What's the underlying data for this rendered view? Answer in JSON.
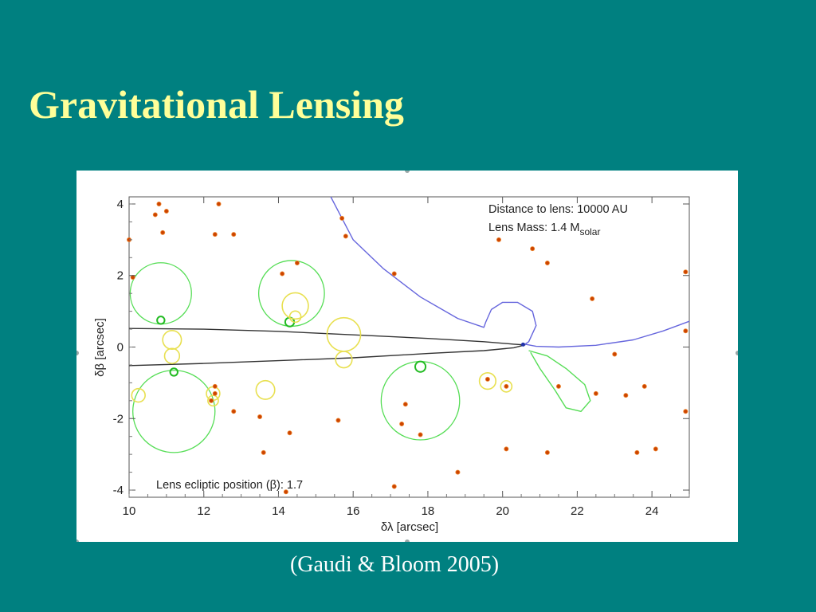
{
  "slide": {
    "title": "Gravitational Lensing",
    "caption": "(Gaudi & Bloom 2005)"
  },
  "colors": {
    "background": "#008080",
    "title": "#ffff99",
    "caption": "#ffffff",
    "star_point": "#cc4400",
    "green_image": "#55dd55",
    "yellow_image": "#e8e050",
    "blue_track": "#6666dd",
    "black_caustic": "#333333"
  },
  "chart_data": {
    "type": "scatter",
    "title": "",
    "xlabel": "δλ [arcsec]",
    "ylabel": "δβ [arcsec]",
    "xlim": [
      10,
      25
    ],
    "ylim": [
      -4.2,
      4.2
    ],
    "xticks": [
      "10",
      "12",
      "14",
      "16",
      "18",
      "20",
      "22",
      "24"
    ],
    "yticks": [
      "4",
      "2",
      "0",
      "-2",
      "-4"
    ],
    "xtick_values": [
      10,
      12,
      14,
      16,
      18,
      20,
      22,
      24
    ],
    "ytick_values": [
      4,
      2,
      0,
      -2,
      -4
    ],
    "annotations": {
      "distance": "Distance to lens: 10000 AU",
      "mass_main": "Lens Mass: 1.4 M",
      "mass_sub": "solar",
      "ecliptic": "Lens ecliptic position (β): 1.7"
    },
    "stars": [
      [
        10.8,
        4.0
      ],
      [
        10.7,
        3.7
      ],
      [
        11.0,
        3.8
      ],
      [
        10.9,
        3.2
      ],
      [
        12.3,
        3.15
      ],
      [
        12.4,
        4.0
      ],
      [
        12.8,
        3.15
      ],
      [
        10.0,
        3.0
      ],
      [
        10.1,
        1.95
      ],
      [
        14.1,
        2.05
      ],
      [
        14.5,
        2.35
      ],
      [
        15.7,
        3.6
      ],
      [
        15.8,
        3.1
      ],
      [
        17.1,
        2.05
      ],
      [
        19.9,
        3.0
      ],
      [
        20.8,
        2.75
      ],
      [
        21.2,
        2.35
      ],
      [
        22.4,
        1.35
      ],
      [
        24.9,
        2.1
      ],
      [
        24.9,
        0.45
      ],
      [
        23.0,
        -0.2
      ],
      [
        22.5,
        -1.3
      ],
      [
        23.3,
        -1.35
      ],
      [
        23.8,
        -1.1
      ],
      [
        24.9,
        -1.8
      ],
      [
        21.5,
        -1.1
      ],
      [
        20.1,
        -1.1
      ],
      [
        19.6,
        -0.9
      ],
      [
        18.8,
        -3.5
      ],
      [
        20.1,
        -2.85
      ],
      [
        21.2,
        -2.95
      ],
      [
        23.6,
        -2.95
      ],
      [
        24.1,
        -2.85
      ],
      [
        17.4,
        -1.6
      ],
      [
        17.3,
        -2.15
      ],
      [
        17.8,
        -2.45
      ],
      [
        15.6,
        -2.05
      ],
      [
        13.5,
        -1.95
      ],
      [
        12.8,
        -1.8
      ],
      [
        13.6,
        -2.95
      ],
      [
        14.3,
        -2.4
      ],
      [
        12.2,
        -1.5
      ],
      [
        12.3,
        -1.3
      ],
      [
        12.3,
        -1.1
      ],
      [
        17.1,
        -3.9
      ],
      [
        14.2,
        -4.05
      ]
    ],
    "green_circles": [
      [
        10.85,
        1.5,
        0.82
      ],
      [
        14.35,
        1.5,
        0.88
      ],
      [
        11.2,
        -1.8,
        1.1
      ],
      [
        17.8,
        -1.5,
        1.05
      ]
    ],
    "green_small": [
      [
        10.85,
        0.75,
        0.1
      ],
      [
        14.3,
        0.7,
        0.12
      ],
      [
        11.2,
        -0.7,
        0.1
      ],
      [
        17.8,
        -0.55,
        0.14
      ]
    ],
    "yellow_circles": [
      [
        14.45,
        1.15,
        0.35
      ],
      [
        14.45,
        0.85,
        0.15
      ],
      [
        11.15,
        0.2,
        0.25
      ],
      [
        11.15,
        -0.25,
        0.2
      ],
      [
        15.75,
        0.35,
        0.45
      ],
      [
        15.75,
        -0.35,
        0.22
      ],
      [
        10.25,
        -1.35,
        0.18
      ],
      [
        12.25,
        -1.3,
        0.18
      ],
      [
        12.25,
        -1.5,
        0.14
      ],
      [
        13.65,
        -1.2,
        0.25
      ],
      [
        19.6,
        -0.95,
        0.22
      ],
      [
        20.1,
        -1.1,
        0.15
      ]
    ],
    "series": [
      {
        "type": "black-caustic",
        "points": [
          [
            10,
            0.52
          ],
          [
            12,
            0.5
          ],
          [
            14,
            0.44
          ],
          [
            16,
            0.34
          ],
          [
            18,
            0.24
          ],
          [
            19.5,
            0.15
          ],
          [
            20.3,
            0.08
          ],
          [
            20.6,
            0.06
          ],
          [
            20.3,
            -0.02
          ],
          [
            19.5,
            -0.1
          ],
          [
            18,
            -0.18
          ],
          [
            16,
            -0.3
          ],
          [
            14,
            -0.38
          ],
          [
            12,
            -0.46
          ],
          [
            10,
            -0.52
          ]
        ]
      },
      {
        "type": "blue-track",
        "points": [
          [
            15.4,
            4.2
          ],
          [
            16,
            3.0
          ],
          [
            16.8,
            2.2
          ],
          [
            17.8,
            1.4
          ],
          [
            18.8,
            0.8
          ],
          [
            19.5,
            0.55
          ],
          [
            19.55,
            0.7
          ],
          [
            19.7,
            1.05
          ],
          [
            20.0,
            1.25
          ],
          [
            20.4,
            1.25
          ],
          [
            20.8,
            1.0
          ],
          [
            20.9,
            0.6
          ],
          [
            20.7,
            0.15
          ],
          [
            20.6,
            0.08
          ],
          [
            20.9,
            0.02
          ],
          [
            21.5,
            0.0
          ],
          [
            22.5,
            0.05
          ],
          [
            23.5,
            0.2
          ],
          [
            24.3,
            0.45
          ],
          [
            25.0,
            0.72
          ]
        ]
      },
      {
        "type": "green-track",
        "points": [
          [
            20.7,
            -0.1
          ],
          [
            21.2,
            -0.25
          ],
          [
            21.7,
            -0.6
          ],
          [
            22.2,
            -1.05
          ],
          [
            22.35,
            -1.5
          ],
          [
            22.1,
            -1.8
          ],
          [
            21.7,
            -1.7
          ],
          [
            21.4,
            -1.2
          ],
          [
            21.0,
            -0.6
          ],
          [
            20.75,
            -0.15
          ]
        ]
      }
    ]
  }
}
